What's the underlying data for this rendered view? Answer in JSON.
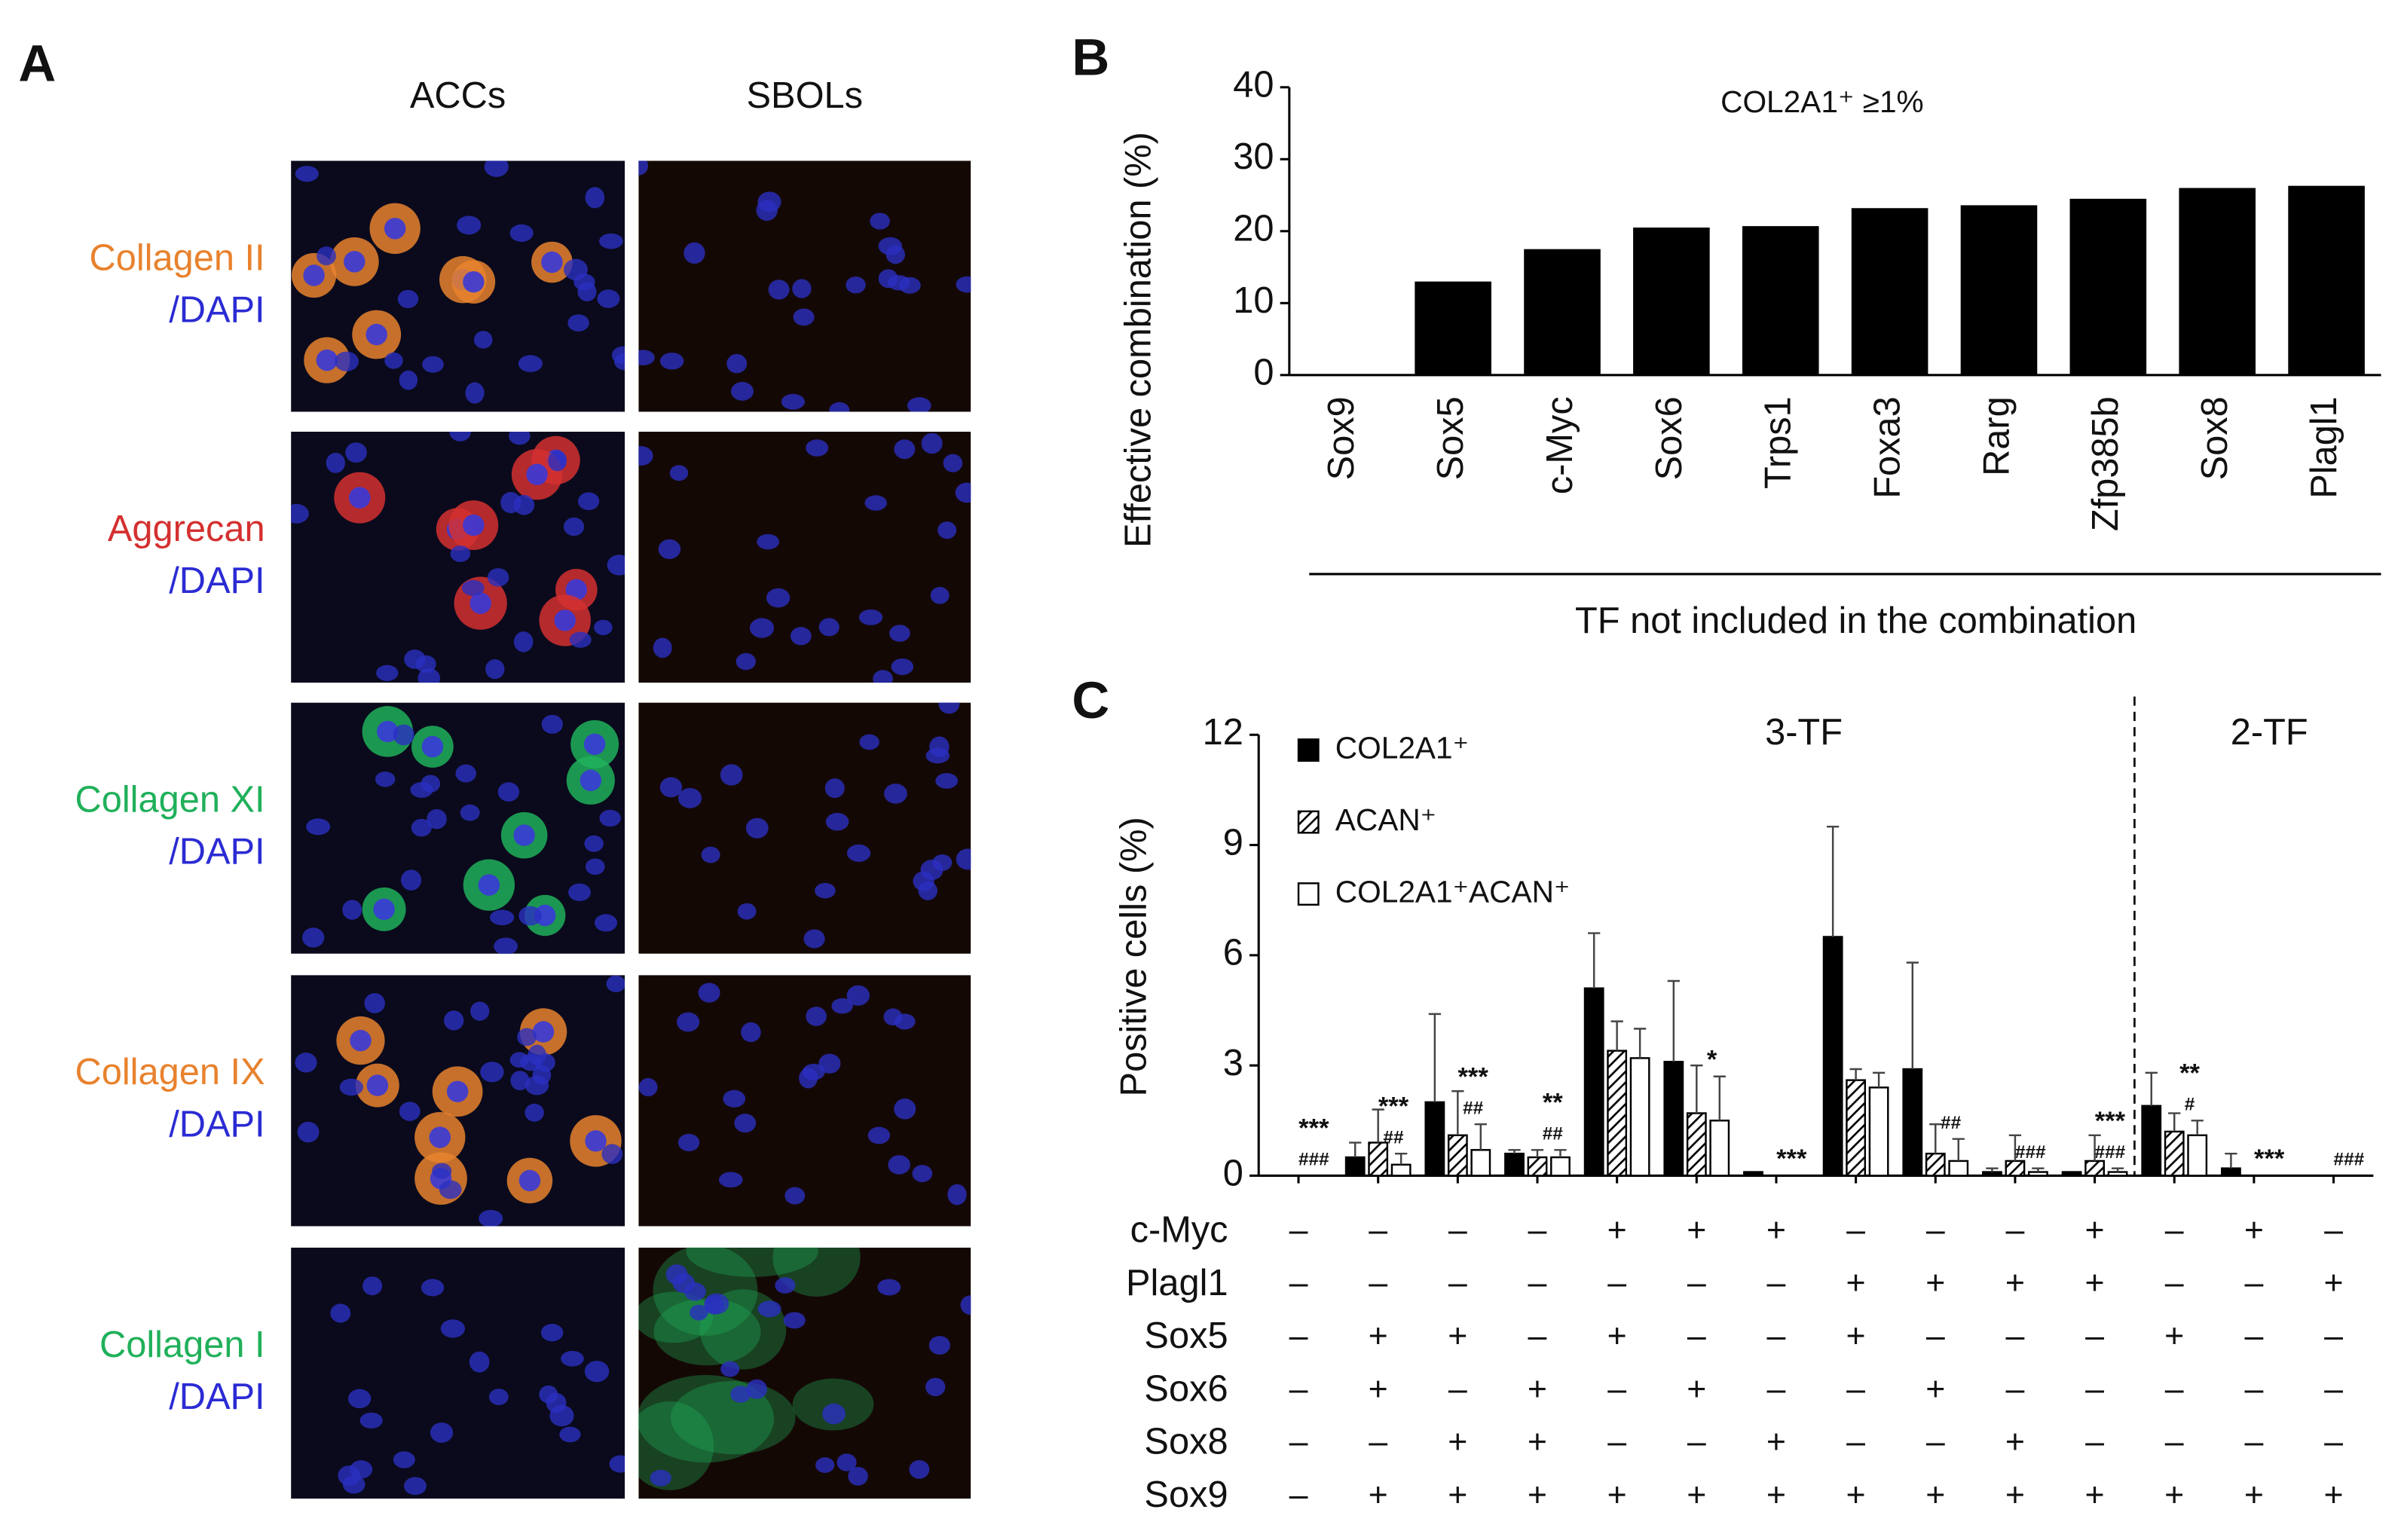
{
  "panel_a": {
    "label": "A",
    "columns": [
      "ACCs",
      "SBOLs"
    ],
    "rows": [
      {
        "stain": "Collagen II",
        "counterstain": "/DAPI",
        "color": "#e8822e",
        "counter_color": "#2b2bd4"
      },
      {
        "stain": "Aggrecan",
        "counterstain": "/DAPI",
        "color": "#d43030",
        "counter_color": "#2b2bd4"
      },
      {
        "stain": "Collagen XI",
        "counterstain": "/DAPI",
        "color": "#20b05a",
        "counter_color": "#2b2bd4"
      },
      {
        "stain": "Collagen IX",
        "counterstain": "/DAPI",
        "color": "#e8822e",
        "counter_color": "#2b2bd4"
      },
      {
        "stain": "Collagen I",
        "counterstain": "/DAPI",
        "color": "#20b05a",
        "counter_color": "#2b2bd4"
      }
    ]
  },
  "chart_data": [
    {
      "type": "bar",
      "panel_label": "B",
      "annotation": "COL2A1⁺ ≥1%",
      "y_label": "Effective combination (%)",
      "x_label": "TF not included in the combination",
      "categories": [
        "Sox9",
        "Sox5",
        "c-Myc",
        "Sox6",
        "Trps1",
        "Foxa3",
        "Rarg",
        "Zfp385b",
        "Sox8",
        "Plagl1"
      ],
      "values": [
        0,
        13,
        17.5,
        20.5,
        20.7,
        23.2,
        23.6,
        24.5,
        26,
        26.3
      ],
      "color": "#000000",
      "ylim": [
        0,
        40
      ],
      "yticks": [
        0,
        10,
        20,
        30,
        40
      ]
    },
    {
      "type": "grouped_bar",
      "panel_label": "C",
      "y_label": "Positive cells (%)",
      "group_labels": [
        "3-TF",
        "2-TF"
      ],
      "series": [
        {
          "name": "COL2A1⁺",
          "color": "#000000",
          "fill": "solid",
          "values": [
            0,
            0.5,
            2.0,
            0.6,
            5.1,
            3.1,
            0.1,
            6.5,
            2.9,
            0.1,
            0.1,
            1.9,
            0.2,
            0
          ],
          "errors": [
            0,
            0.4,
            2.4,
            0.1,
            1.5,
            2.2,
            0,
            3.0,
            2.9,
            0.1,
            0,
            0.9,
            0.4,
            0
          ]
        },
        {
          "name": "ACAN⁺",
          "color": "#000000",
          "fill": "hatched",
          "values": [
            0,
            0.9,
            1.1,
            0.5,
            3.4,
            1.7,
            0,
            2.6,
            0.6,
            0.4,
            0.4,
            1.2,
            0,
            0
          ],
          "errors": [
            0,
            0.9,
            1.2,
            0.2,
            0.8,
            1.3,
            0,
            0.3,
            0.8,
            0.7,
            0.7,
            0.5,
            0,
            0
          ]
        },
        {
          "name": "COL2A1⁺ACAN⁺",
          "color": "#ffffff",
          "fill": "solid",
          "values": [
            0,
            0.3,
            0.7,
            0.5,
            3.2,
            1.5,
            0,
            2.4,
            0.4,
            0.1,
            0.1,
            1.1,
            0,
            0
          ],
          "errors": [
            0,
            0.3,
            0.7,
            0.2,
            0.8,
            1.2,
            0,
            0.4,
            0.6,
            0.1,
            0.1,
            0.4,
            0,
            0
          ]
        }
      ],
      "stars": [
        "***",
        "***",
        "***",
        "**",
        null,
        "*",
        "***",
        null,
        null,
        null,
        "***",
        "**",
        "***",
        null
      ],
      "hashes": [
        "###",
        "##",
        "##",
        "##",
        null,
        null,
        null,
        null,
        "##",
        "###",
        "###",
        "#",
        null,
        "###"
      ],
      "ylim": [
        0,
        12
      ],
      "yticks": [
        0,
        3,
        6,
        9,
        12
      ],
      "table": {
        "rows": [
          {
            "label": "c-Myc",
            "cells": [
              "–",
              "–",
              "–",
              "–",
              "+",
              "+",
              "+",
              "–",
              "–",
              "–",
              "+",
              "–",
              "+",
              "–"
            ]
          },
          {
            "label": "Plagl1",
            "cells": [
              "–",
              "–",
              "–",
              "–",
              "–",
              "–",
              "–",
              "+",
              "+",
              "+",
              "+",
              "–",
              "–",
              "+"
            ]
          },
          {
            "label": "Sox5",
            "cells": [
              "–",
              "+",
              "+",
              "–",
              "+",
              "–",
              "–",
              "+",
              "–",
              "–",
              "–",
              "+",
              "–",
              "–"
            ]
          },
          {
            "label": "Sox6",
            "cells": [
              "–",
              "+",
              "–",
              "+",
              "–",
              "+",
              "–",
              "–",
              "+",
              "–",
              "–",
              "–",
              "–",
              "–"
            ]
          },
          {
            "label": "Sox8",
            "cells": [
              "–",
              "–",
              "+",
              "+",
              "–",
              "–",
              "+",
              "–",
              "–",
              "+",
              "–",
              "–",
              "–",
              "–"
            ]
          },
          {
            "label": "Sox9",
            "cells": [
              "–",
              "+",
              "+",
              "+",
              "+",
              "+",
              "+",
              "+",
              "+",
              "+",
              "+",
              "+",
              "+",
              "+"
            ]
          }
        ]
      }
    }
  ]
}
